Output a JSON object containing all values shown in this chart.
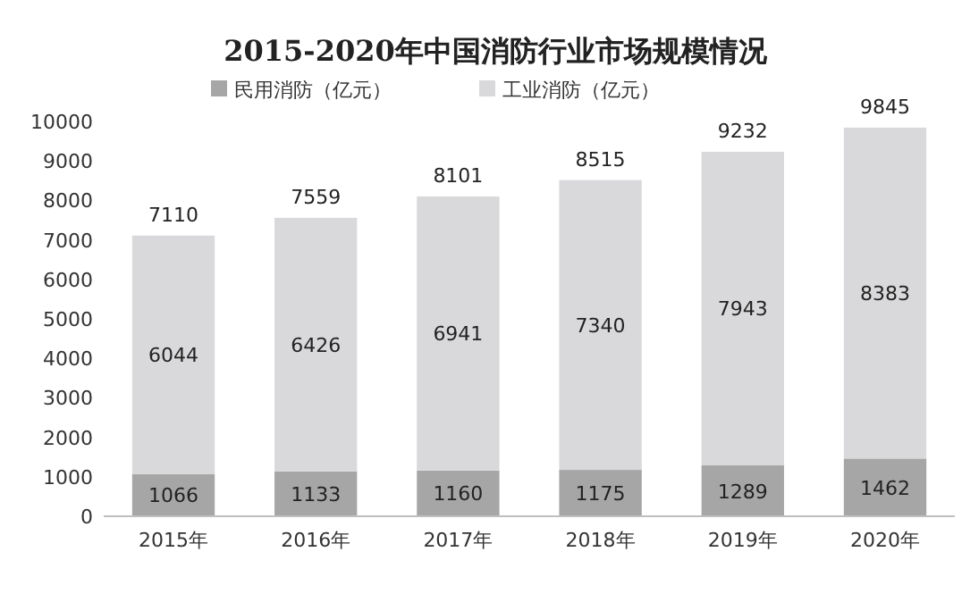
{
  "chart_data": {
    "type": "bar",
    "title": "2015-2020年中国消防行业市场规模情况",
    "categories": [
      "2015年",
      "2016年",
      "2017年",
      "2018年",
      "2019年",
      "2020年"
    ],
    "series": [
      {
        "name": "民用消防（亿元）",
        "color": "#a6a6a6",
        "values": [
          1066,
          1133,
          1160,
          1175,
          1289,
          1462
        ]
      },
      {
        "name": "工业消防（亿元）",
        "color": "#d9d9db",
        "values": [
          6044,
          6426,
          6941,
          7340,
          7943,
          8383
        ]
      }
    ],
    "stacked": true,
    "ylim": [
      0,
      10000
    ],
    "yticks": [
      0,
      1000,
      2000,
      3000,
      4000,
      5000,
      6000,
      7000,
      8000,
      9000,
      10000
    ],
    "grid": false,
    "legend": "top",
    "data_labels": true,
    "totals": [
      "7110",
      "7559",
      "8101",
      "8515",
      "9232",
      "9845"
    ]
  }
}
